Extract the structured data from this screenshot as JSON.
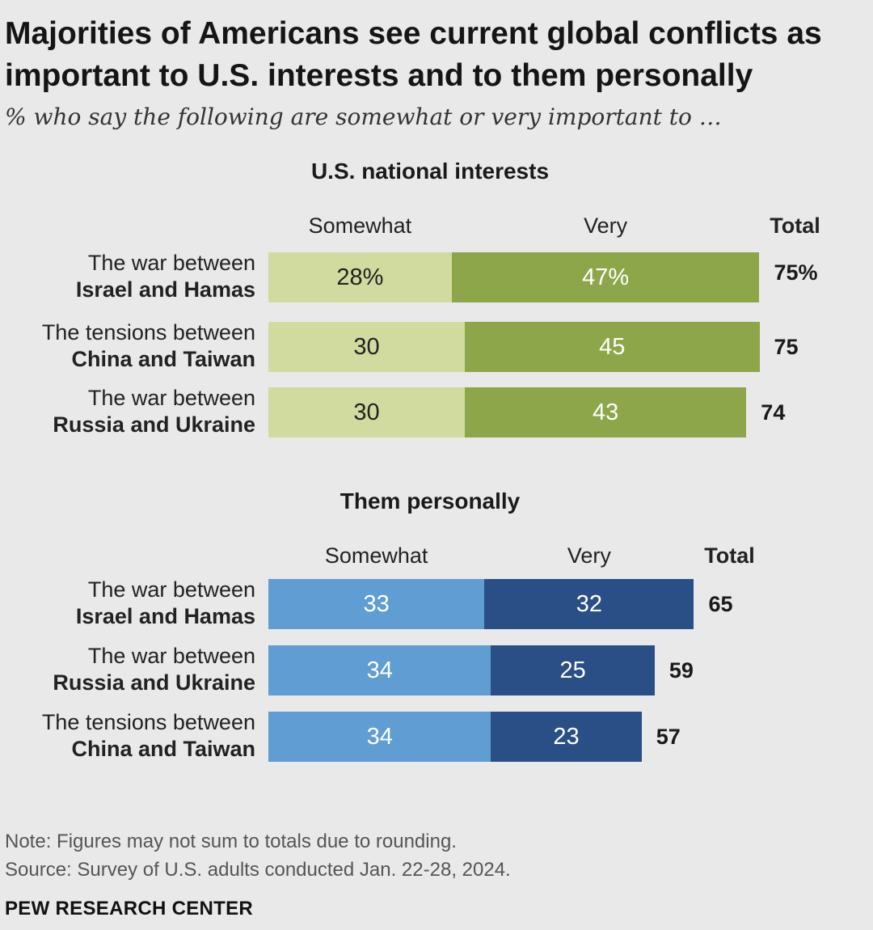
{
  "title": "Majorities of Americans see current global conflicts as important to U.S. interests and to them personally",
  "subtitle": "% who say the following are somewhat or very important to …",
  "note": "Note: Figures may not sum to totals due to rounding.",
  "source": "Source: Survey of U.S. adults conducted Jan. 22-28, 2024.",
  "brand": "PEW RESEARCH CENTER",
  "colors": {
    "somewhat_national": "#d1dba0",
    "very_national": "#8ea64a",
    "somewhat_personal": "#5f9dd3",
    "very_personal": "#2a4f86"
  },
  "chart_data": [
    {
      "type": "bar",
      "stacked": true,
      "orientation": "horizontal",
      "title": "U.S. national interests",
      "headers": {
        "somewhat": "Somewhat",
        "very": "Very",
        "total": "Total"
      },
      "rows": [
        {
          "label_line1": "The war between",
          "label_line2": "Israel and Hamas",
          "somewhat": 28,
          "very": 47,
          "total": 75,
          "somewhat_label": "28%",
          "very_label": "47%",
          "total_label": "75%"
        },
        {
          "label_line1": "The tensions between",
          "label_line2": "China and Taiwan",
          "somewhat": 30,
          "very": 45,
          "total": 75,
          "somewhat_label": "30",
          "very_label": "45",
          "total_label": "75"
        },
        {
          "label_line1": "The war between",
          "label_line2": "Russia and Ukraine",
          "somewhat": 30,
          "very": 43,
          "total": 74,
          "somewhat_label": "30",
          "very_label": "43",
          "total_label": "74"
        }
      ]
    },
    {
      "type": "bar",
      "stacked": true,
      "orientation": "horizontal",
      "title": "Them personally",
      "headers": {
        "somewhat": "Somewhat",
        "very": "Very",
        "total": "Total"
      },
      "rows": [
        {
          "label_line1": "The war between",
          "label_line2": "Israel and Hamas",
          "somewhat": 33,
          "very": 32,
          "total": 65,
          "somewhat_label": "33",
          "very_label": "32",
          "total_label": "65"
        },
        {
          "label_line1": "The war between",
          "label_line2": "Russia and Ukraine",
          "somewhat": 34,
          "very": 25,
          "total": 59,
          "somewhat_label": "34",
          "very_label": "25",
          "total_label": "59"
        },
        {
          "label_line1": "The tensions between",
          "label_line2": "China and Taiwan",
          "somewhat": 34,
          "very": 23,
          "total": 57,
          "somewhat_label": "34",
          "very_label": "23",
          "total_label": "57"
        }
      ]
    }
  ]
}
